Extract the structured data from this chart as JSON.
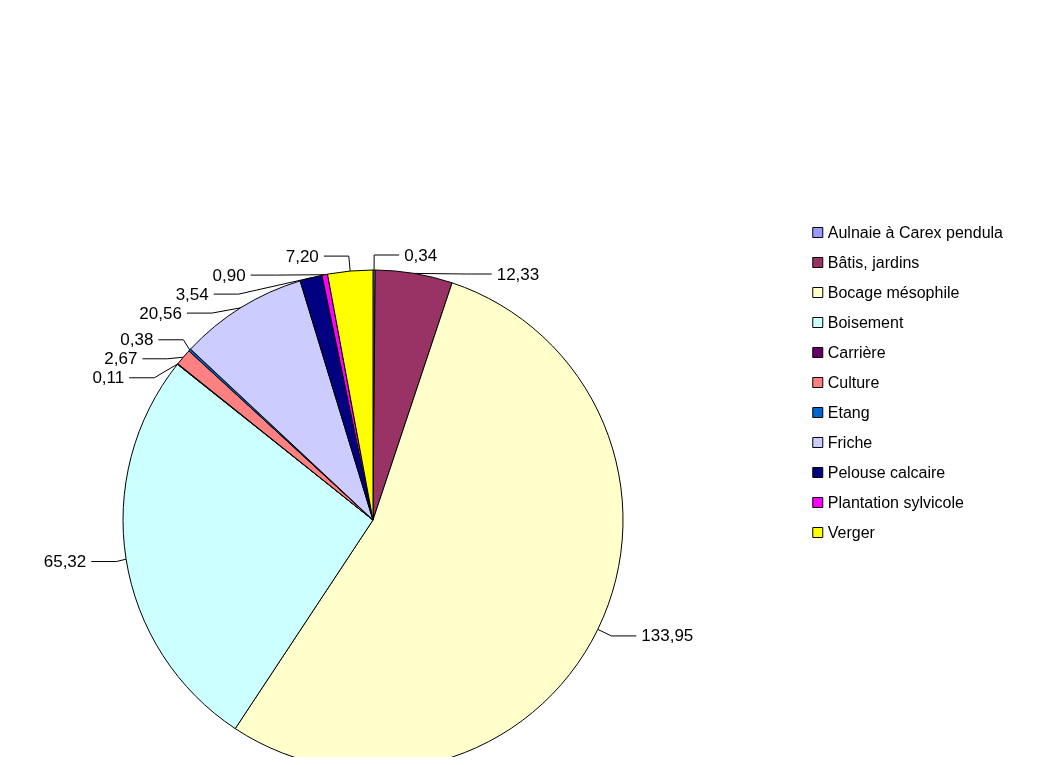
{
  "chart_data": {
    "type": "pie",
    "categories": [
      "Aulnaie à Carex pendula",
      "Bâtis, jardins",
      "Bocage mésophile",
      "Boisement",
      "Carrière",
      "Culture",
      "Etang",
      "Friche",
      "Pelouse calcaire",
      "Plantation sylvicole",
      "Verger"
    ],
    "values": [
      0.34,
      12.33,
      133.95,
      65.32,
      0.11,
      2.67,
      0.38,
      20.56,
      3.54,
      0.9,
      7.2
    ],
    "value_labels": [
      "0,34",
      "12,33",
      "133,95",
      "65,32",
      "0,11",
      "2,67",
      "0,38",
      "20,56",
      "3,54",
      "0,90",
      "7,20"
    ],
    "colors": [
      "#9999ff",
      "#993366",
      "#ffffcc",
      "#ccffff",
      "#660066",
      "#ff8080",
      "#0066cc",
      "#ccccff",
      "#000080",
      "#ff00ff",
      "#ffff00"
    ],
    "legend": "right"
  }
}
